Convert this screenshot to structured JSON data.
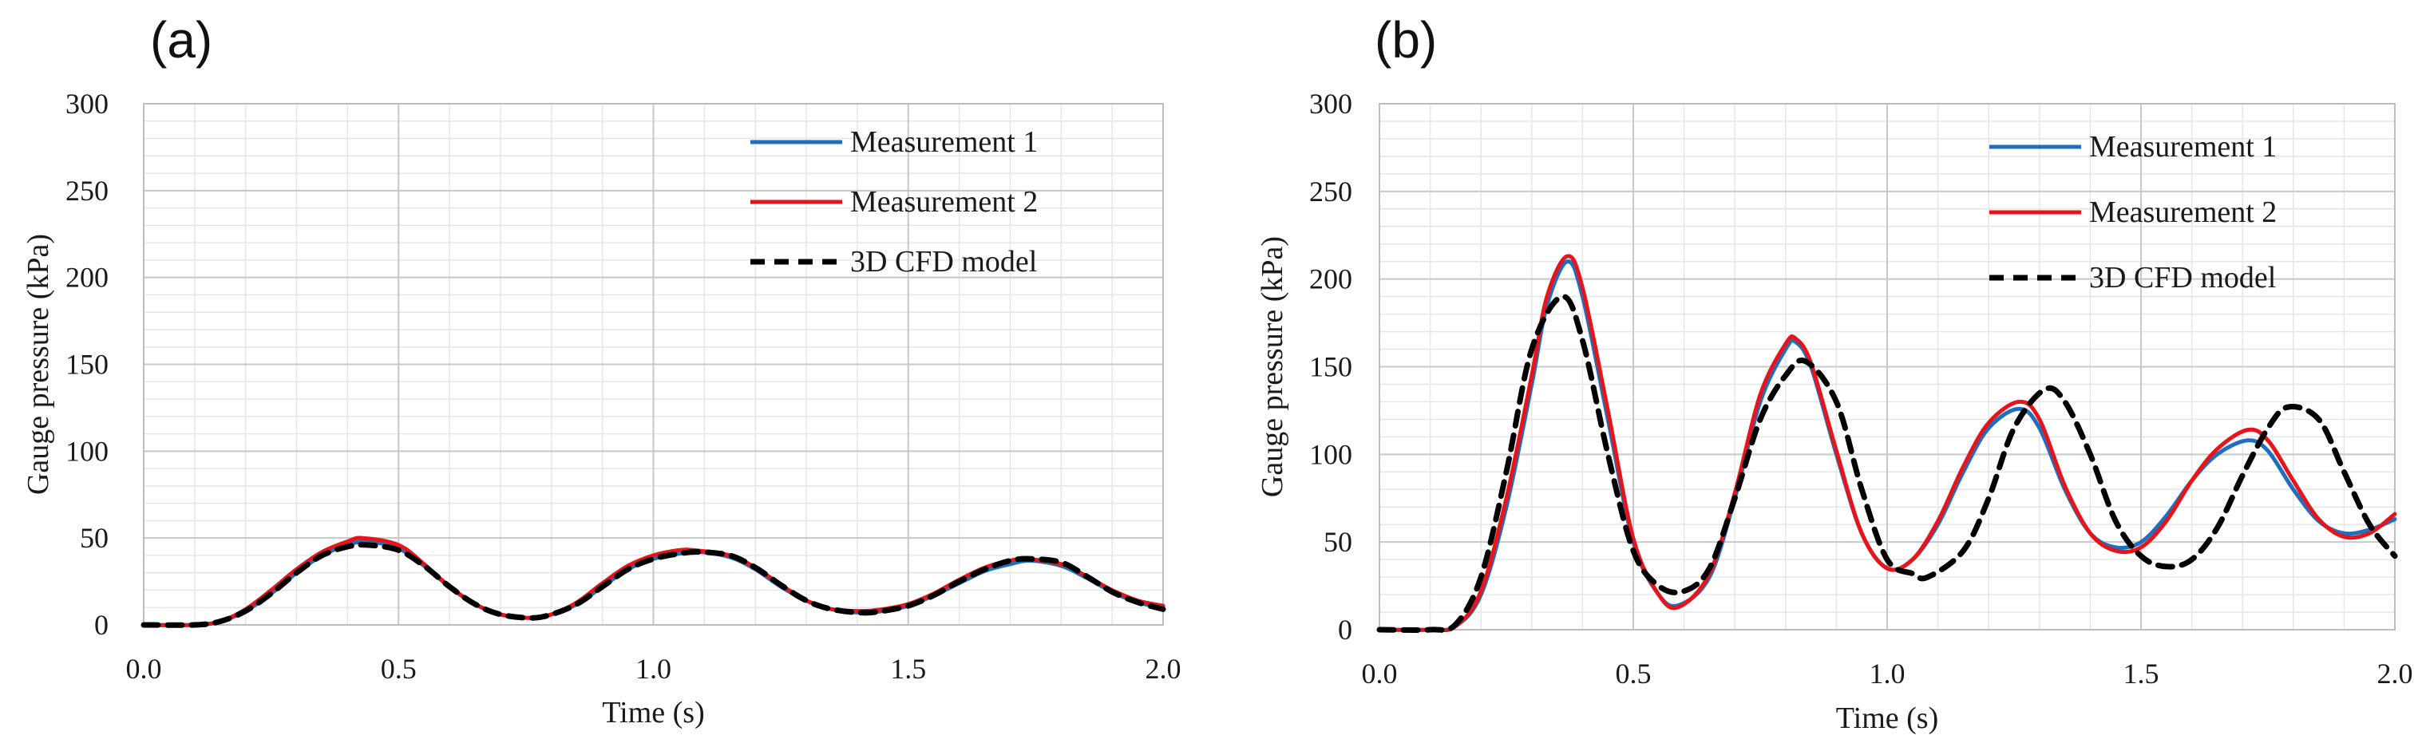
{
  "chart_data": [
    {
      "type": "line",
      "panel_label": "(a)",
      "title": "",
      "xlabel": "Time (s)",
      "ylabel": "Gauge pressure (kPa)",
      "xlim": [
        0.0,
        2.0
      ],
      "ylim": [
        0,
        300
      ],
      "xticks": [
        0.0,
        0.5,
        1.0,
        1.5,
        2.0
      ],
      "xtick_labels": [
        "0.0",
        "0.5",
        "1.0",
        "1.5",
        "2.0"
      ],
      "yticks": [
        0,
        50,
        100,
        150,
        200,
        250,
        300
      ],
      "ytick_labels": [
        "0",
        "50",
        "100",
        "150",
        "200",
        "250",
        "300"
      ],
      "grid": true,
      "legend": "top-right",
      "series": [
        {
          "name": "Measurement 1",
          "color": "#1f6fbf",
          "dash": "solid",
          "x": [
            0.0,
            0.1,
            0.15,
            0.2,
            0.25,
            0.3,
            0.35,
            0.4,
            0.44,
            0.5,
            0.55,
            0.6,
            0.65,
            0.7,
            0.76,
            0.8,
            0.85,
            0.9,
            0.95,
            1.0,
            1.05,
            1.09,
            1.15,
            1.2,
            1.25,
            1.3,
            1.35,
            1.41,
            1.45,
            1.5,
            1.55,
            1.6,
            1.65,
            1.7,
            1.74,
            1.8,
            1.85,
            1.9,
            1.95,
            2.0
          ],
          "y": [
            0,
            0,
            2,
            8,
            18,
            30,
            40,
            46,
            48,
            44,
            34,
            22,
            12,
            6,
            4,
            6,
            12,
            22,
            32,
            38,
            41,
            42,
            39,
            32,
            22,
            14,
            9,
            7,
            8,
            11,
            17,
            24,
            31,
            35,
            37,
            34,
            27,
            19,
            13,
            10
          ]
        },
        {
          "name": "Measurement 2",
          "color": "#e8141b",
          "dash": "solid",
          "x": [
            0.0,
            0.1,
            0.15,
            0.2,
            0.25,
            0.3,
            0.35,
            0.4,
            0.43,
            0.5,
            0.55,
            0.6,
            0.65,
            0.7,
            0.76,
            0.8,
            0.85,
            0.9,
            0.95,
            1.0,
            1.05,
            1.08,
            1.15,
            1.2,
            1.25,
            1.3,
            1.35,
            1.41,
            1.45,
            1.5,
            1.55,
            1.6,
            1.65,
            1.7,
            1.73,
            1.8,
            1.85,
            1.9,
            1.95,
            2.0
          ],
          "y": [
            0,
            0,
            2,
            9,
            20,
            32,
            42,
            48,
            50,
            46,
            35,
            22,
            12,
            6,
            4,
            6,
            13,
            24,
            34,
            40,
            43,
            43,
            40,
            33,
            23,
            14,
            9,
            8,
            9,
            12,
            18,
            26,
            33,
            37,
            38,
            35,
            28,
            20,
            14,
            11
          ]
        },
        {
          "name": "3D CFD model",
          "color": "#000000",
          "dash": "dashed",
          "x": [
            0.0,
            0.1,
            0.15,
            0.2,
            0.25,
            0.3,
            0.35,
            0.4,
            0.44,
            0.5,
            0.55,
            0.6,
            0.65,
            0.7,
            0.76,
            0.8,
            0.85,
            0.9,
            0.95,
            1.0,
            1.05,
            1.09,
            1.15,
            1.2,
            1.25,
            1.3,
            1.35,
            1.41,
            1.45,
            1.5,
            1.55,
            1.6,
            1.65,
            1.7,
            1.74,
            1.8,
            1.85,
            1.9,
            1.95,
            2.0
          ],
          "y": [
            0,
            0,
            2,
            8,
            18,
            30,
            40,
            45,
            46,
            43,
            34,
            22,
            12,
            6,
            4,
            6,
            12,
            22,
            32,
            38,
            41,
            42,
            40,
            33,
            23,
            14,
            9,
            7,
            8,
            11,
            17,
            25,
            32,
            37,
            38,
            36,
            28,
            19,
            13,
            9
          ]
        }
      ]
    },
    {
      "type": "line",
      "panel_label": "(b)",
      "title": "",
      "xlabel": "Time (s)",
      "ylabel": "Gauge pressure (kPa)",
      "xlim": [
        0.0,
        2.0
      ],
      "ylim": [
        0,
        300
      ],
      "xticks": [
        0.0,
        0.5,
        1.0,
        1.5,
        2.0
      ],
      "xtick_labels": [
        "0.0",
        "0.5",
        "1.0",
        "1.5",
        "2.0"
      ],
      "yticks": [
        0,
        50,
        100,
        150,
        200,
        250,
        300
      ],
      "ytick_labels": [
        "0",
        "50",
        "100",
        "150",
        "200",
        "250",
        "300"
      ],
      "grid": true,
      "legend": "top-right",
      "series": [
        {
          "name": "Measurement 1",
          "color": "#1f6fbf",
          "dash": "solid",
          "x": [
            0.0,
            0.1,
            0.15,
            0.2,
            0.25,
            0.3,
            0.33,
            0.37,
            0.4,
            0.45,
            0.5,
            0.55,
            0.59,
            0.65,
            0.7,
            0.75,
            0.8,
            0.82,
            0.85,
            0.9,
            0.95,
            1.0,
            1.05,
            1.1,
            1.15,
            1.2,
            1.26,
            1.3,
            1.35,
            1.4,
            1.45,
            1.5,
            1.55,
            1.6,
            1.65,
            1.71,
            1.75,
            1.8,
            1.85,
            1.9,
            1.95,
            2.0
          ],
          "y": [
            0,
            0,
            2,
            20,
            70,
            140,
            185,
            210,
            190,
            120,
            50,
            20,
            14,
            30,
            75,
            130,
            160,
            164,
            150,
            100,
            55,
            35,
            40,
            60,
            90,
            115,
            126,
            115,
            80,
            55,
            47,
            50,
            65,
            85,
            100,
            108,
            102,
            80,
            62,
            55,
            57,
            63
          ]
        },
        {
          "name": "Measurement 2",
          "color": "#e8141b",
          "dash": "solid",
          "x": [
            0.0,
            0.1,
            0.15,
            0.2,
            0.25,
            0.3,
            0.33,
            0.37,
            0.4,
            0.45,
            0.5,
            0.55,
            0.59,
            0.65,
            0.7,
            0.75,
            0.8,
            0.82,
            0.85,
            0.9,
            0.95,
            1.0,
            1.05,
            1.1,
            1.15,
            1.2,
            1.26,
            1.3,
            1.35,
            1.4,
            1.45,
            1.5,
            1.55,
            1.6,
            1.65,
            1.71,
            1.75,
            1.8,
            1.85,
            1.9,
            1.95,
            2.0
          ],
          "y": [
            0,
            0,
            2,
            22,
            75,
            145,
            190,
            213,
            195,
            125,
            52,
            20,
            13,
            32,
            78,
            134,
            163,
            166,
            152,
            102,
            55,
            35,
            40,
            62,
            93,
            118,
            130,
            120,
            82,
            55,
            45,
            47,
            62,
            85,
            103,
            114,
            108,
            85,
            63,
            53,
            55,
            66
          ]
        },
        {
          "name": "3D CFD model",
          "color": "#000000",
          "dash": "dashed",
          "x": [
            0.0,
            0.1,
            0.15,
            0.2,
            0.25,
            0.3,
            0.36,
            0.4,
            0.45,
            0.5,
            0.55,
            0.6,
            0.65,
            0.7,
            0.75,
            0.8,
            0.84,
            0.9,
            0.95,
            1.0,
            1.05,
            1.08,
            1.15,
            1.2,
            1.25,
            1.31,
            1.35,
            1.4,
            1.45,
            1.5,
            1.55,
            1.6,
            1.65,
            1.7,
            1.75,
            1.79,
            1.85,
            1.9,
            1.95,
            2.0
          ],
          "y": [
            0,
            0,
            3,
            30,
            90,
            160,
            190,
            165,
            100,
            45,
            25,
            22,
            35,
            75,
            120,
            145,
            153,
            130,
            80,
            40,
            32,
            30,
            45,
            75,
            115,
            137,
            130,
            100,
            62,
            42,
            36,
            40,
            58,
            88,
            115,
            127,
            120,
            90,
            60,
            42
          ]
        }
      ]
    }
  ]
}
